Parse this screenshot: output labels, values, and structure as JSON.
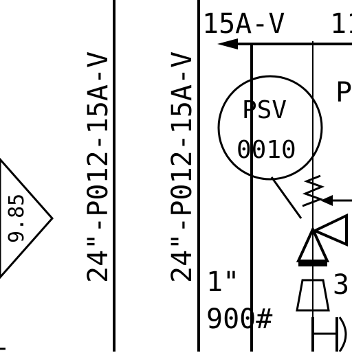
{
  "lines": {
    "left_line_label": "24\"-P012-15A-V",
    "right_line_label": "24\"-P012-15A-V",
    "top_line_label": "15A-V",
    "top_line_label_cut": "11"
  },
  "instrument": {
    "tag_letters": "PSV",
    "tag_number": "0010"
  },
  "diamond": {
    "value": "9.85"
  },
  "size_note": {
    "size": "1\"",
    "rating": "900#"
  },
  "partial_labels": {
    "right_p": "P",
    "right_3": "3"
  }
}
